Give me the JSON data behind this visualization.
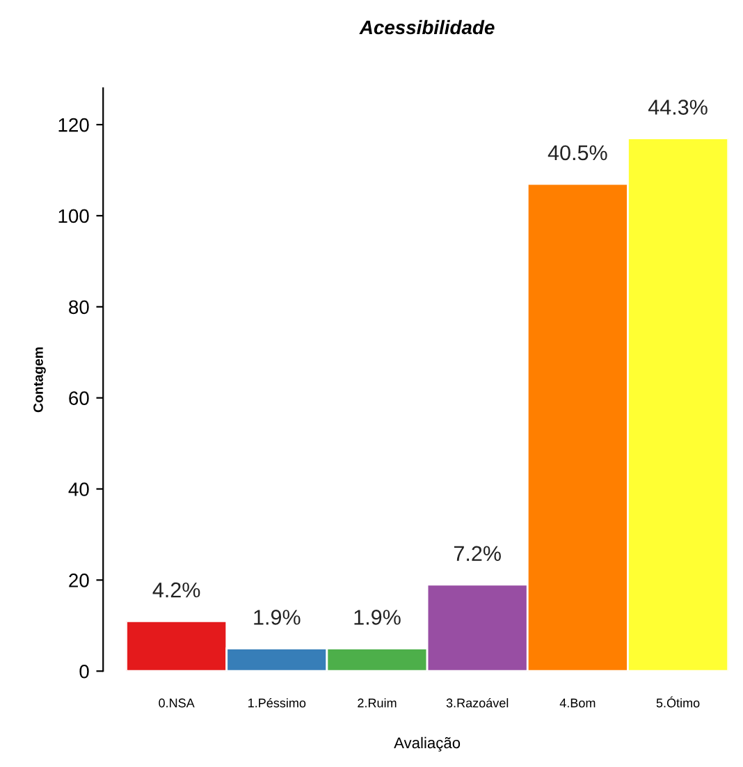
{
  "chart_data": {
    "type": "bar",
    "title": "Acessibilidade",
    "xlabel": "Avaliação",
    "ylabel": "Contagem",
    "categories": [
      "0.NSA",
      "1.Péssimo",
      "2.Ruim",
      "3.Razoável",
      "4.Bom",
      "5.Ótimo"
    ],
    "values": [
      11,
      5,
      5,
      19,
      107,
      117
    ],
    "colors": [
      "#e41a1c",
      "#377eb8",
      "#4daf4a",
      "#984ea3",
      "#ff7f00",
      "#ffff33"
    ],
    "annotations": [
      {
        "text": "4.2%",
        "x": "0.NSA",
        "y": 11
      },
      {
        "text": "1.9%",
        "x": "1.Péssimo",
        "y": 5
      },
      {
        "text": "1.9%",
        "x": "2.Ruim",
        "y": 5
      },
      {
        "text": "7.2%",
        "x": "3.Razoável",
        "y": 19
      },
      {
        "text": "40.5%",
        "x": "4.Bom",
        "y": 107
      },
      {
        "text": "44.3%",
        "x": "5.Ótimo",
        "y": 117
      }
    ],
    "ylim": [
      0,
      128
    ],
    "yticks": [
      0,
      20,
      40,
      60,
      80,
      100,
      120
    ],
    "grid": false,
    "legend": false
  }
}
